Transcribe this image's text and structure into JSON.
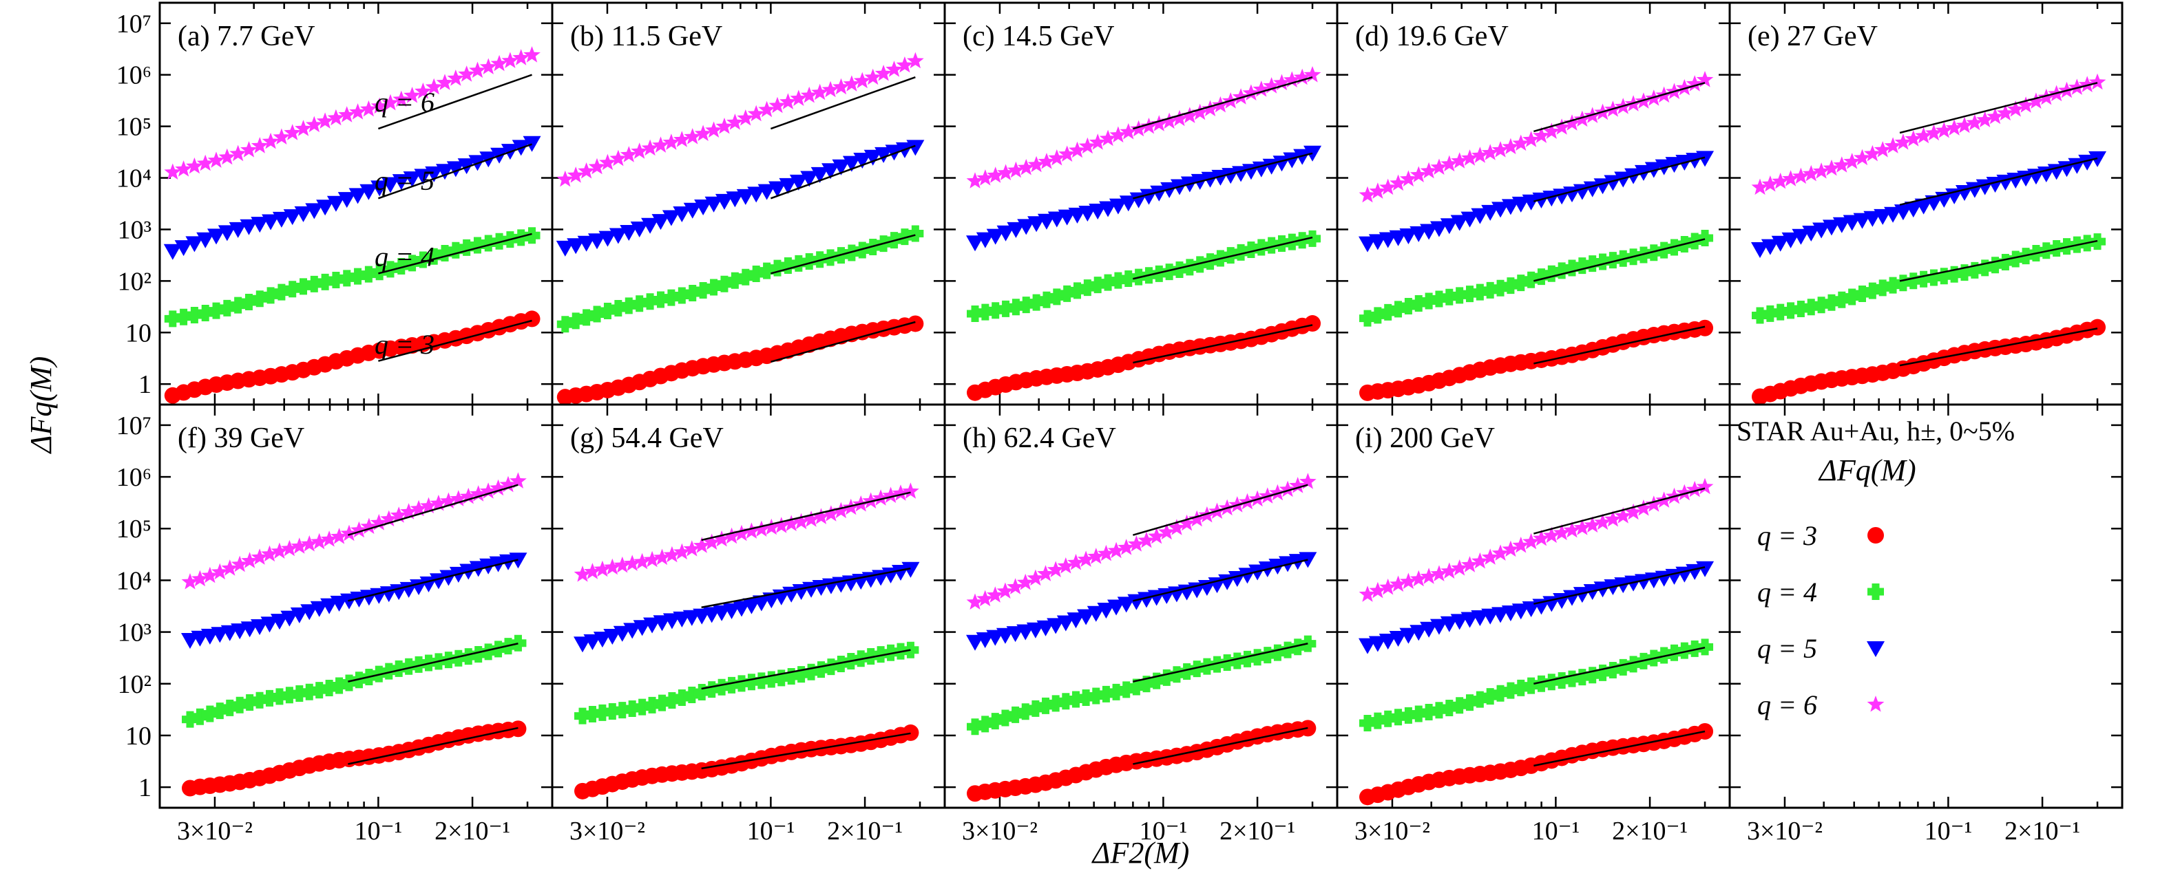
{
  "chart_data": {
    "type": "scatter",
    "x_scale": "log",
    "y_scale": "log",
    "xlim": [
      0.02,
      0.36
    ],
    "ylim": [
      0.4,
      25000000
    ],
    "xlabel": "ΔF2(M)",
    "ylabel": "ΔFq(M)",
    "x_ticks": [
      {
        "value": 0.03,
        "label": "3×10⁻²"
      },
      {
        "value": 0.1,
        "label": "10⁻¹"
      },
      {
        "value": 0.2,
        "label": "2×10⁻¹"
      }
    ],
    "y_ticks": [
      {
        "value": 1,
        "label": "1"
      },
      {
        "value": 10,
        "label": "10"
      },
      {
        "value": 100,
        "label": "10²"
      },
      {
        "value": 1000,
        "label": "10³"
      },
      {
        "value": 10000,
        "label": "10⁴"
      },
      {
        "value": 100000,
        "label": "10⁵"
      },
      {
        "value": 1000000,
        "label": "10⁶"
      },
      {
        "value": 10000000,
        "label": "10⁷"
      }
    ],
    "series_defs": [
      {
        "q": 3,
        "marker": "circle",
        "color": "#ff0000"
      },
      {
        "q": 4,
        "marker": "plus",
        "color": "#33ee33"
      },
      {
        "q": 5,
        "marker": "triangle-down",
        "color": "#0000ff"
      },
      {
        "q": 6,
        "marker": "star",
        "color": "#ff33ff"
      }
    ],
    "q_labels": [
      "q = 3",
      "q = 4",
      "q = 5",
      "q = 6"
    ],
    "panels": [
      {
        "label": "(a) 7.7 GeV",
        "x": [
          0.022,
          0.31
        ],
        "y3": [
          0.6,
          17
        ],
        "y4": [
          18,
          820
        ],
        "y5": [
          400,
          45000
        ],
        "y6": [
          12000,
          2500000
        ],
        "fit_x": [
          0.1,
          0.31
        ],
        "fit3": [
          2.8,
          17
        ],
        "fit4": [
          140,
          820
        ],
        "fit5": [
          4000,
          45000
        ],
        "fit6": [
          90000,
          1000000
        ]
      },
      {
        "label": "(b) 11.5 GeV",
        "x": [
          0.022,
          0.29
        ],
        "y3": [
          0.55,
          16
        ],
        "y4": [
          15,
          780
        ],
        "y5": [
          420,
          42000
        ],
        "y6": [
          10000,
          1800000
        ],
        "fit_x": [
          0.1,
          0.29
        ],
        "fit3": [
          2.7,
          16
        ],
        "fit4": [
          140,
          780
        ],
        "fit5": [
          4000,
          42000
        ],
        "fit6": [
          90000,
          900000
        ]
      },
      {
        "label": "(c) 14.5 GeV",
        "x": [
          0.025,
          0.3
        ],
        "y3": [
          0.7,
          14
        ],
        "y4": [
          22,
          700
        ],
        "y5": [
          600,
          30000
        ],
        "y6": [
          8000,
          1000000
        ],
        "fit_x": [
          0.08,
          0.3
        ],
        "fit3": [
          2.6,
          14
        ],
        "fit4": [
          110,
          700
        ],
        "fit5": [
          4000,
          30000
        ],
        "fit6": [
          90000,
          900000
        ]
      },
      {
        "label": "(d) 19.6 GeV",
        "x": [
          0.025,
          0.3
        ],
        "y3": [
          0.65,
          13
        ],
        "y4": [
          20,
          650
        ],
        "y5": [
          500,
          25000
        ],
        "y6": [
          5000,
          800000
        ],
        "fit_x": [
          0.085,
          0.3
        ],
        "fit3": [
          2.5,
          13
        ],
        "fit4": [
          100,
          650
        ],
        "fit5": [
          3500,
          25000
        ],
        "fit6": [
          80000,
          700000
        ]
      },
      {
        "label": "(e) 27 GeV",
        "x": [
          0.025,
          0.3
        ],
        "y3": [
          0.6,
          12
        ],
        "y4": [
          20,
          600
        ],
        "y5": [
          450,
          24000
        ],
        "y6": [
          6000,
          700000
        ],
        "fit_x": [
          0.07,
          0.3
        ],
        "fit3": [
          2.3,
          12
        ],
        "fit4": [
          100,
          600
        ],
        "fit5": [
          3000,
          24000
        ],
        "fit6": [
          75000,
          700000
        ]
      },
      {
        "label": "(f) 39 GeV",
        "x": [
          0.025,
          0.28
        ],
        "y3": [
          0.9,
          14
        ],
        "y4": [
          22,
          600
        ],
        "y5": [
          650,
          25000
        ],
        "y6": [
          10000,
          850000
        ],
        "fit_x": [
          0.08,
          0.28
        ],
        "fit3": [
          2.8,
          14
        ],
        "fit4": [
          110,
          600
        ],
        "fit5": [
          4000,
          25000
        ],
        "fit6": [
          75000,
          700000
        ]
      },
      {
        "label": "(g) 54.4 GeV",
        "x": [
          0.025,
          0.28
        ],
        "y3": [
          0.9,
          11
        ],
        "y4": [
          22,
          450
        ],
        "y5": [
          650,
          17000
        ],
        "y6": [
          12000,
          500000
        ],
        "fit_x": [
          0.06,
          0.28
        ],
        "fit3": [
          2.3,
          11
        ],
        "fit4": [
          80,
          450
        ],
        "fit5": [
          3000,
          17000
        ],
        "fit6": [
          60000,
          500000
        ]
      },
      {
        "label": "(h) 62.4 GeV",
        "x": [
          0.025,
          0.29
        ],
        "y3": [
          0.7,
          14
        ],
        "y4": [
          16,
          600
        ],
        "y5": [
          600,
          25000
        ],
        "y6": [
          4000,
          850000
        ],
        "fit_x": [
          0.08,
          0.29
        ],
        "fit3": [
          2.8,
          14
        ],
        "fit4": [
          110,
          600
        ],
        "fit5": [
          4000,
          25000
        ],
        "fit6": [
          75000,
          700000
        ]
      },
      {
        "label": "(i) 200 GeV",
        "x": [
          0.025,
          0.3
        ],
        "y3": [
          0.7,
          12
        ],
        "y4": [
          16,
          500
        ],
        "y5": [
          600,
          18000
        ],
        "y6": [
          5000,
          600000
        ],
        "fit_x": [
          0.085,
          0.3
        ],
        "fit3": [
          2.6,
          12
        ],
        "fit4": [
          100,
          500
        ],
        "fit5": [
          3500,
          18000
        ],
        "fit6": [
          80000,
          600000
        ]
      }
    ],
    "legend": {
      "title": "STAR Au+Au, h±, 0~5%",
      "subtitle": "ΔFq(M)",
      "entries": [
        "q = 3",
        "q = 4",
        "q = 5",
        "q = 6"
      ]
    }
  }
}
